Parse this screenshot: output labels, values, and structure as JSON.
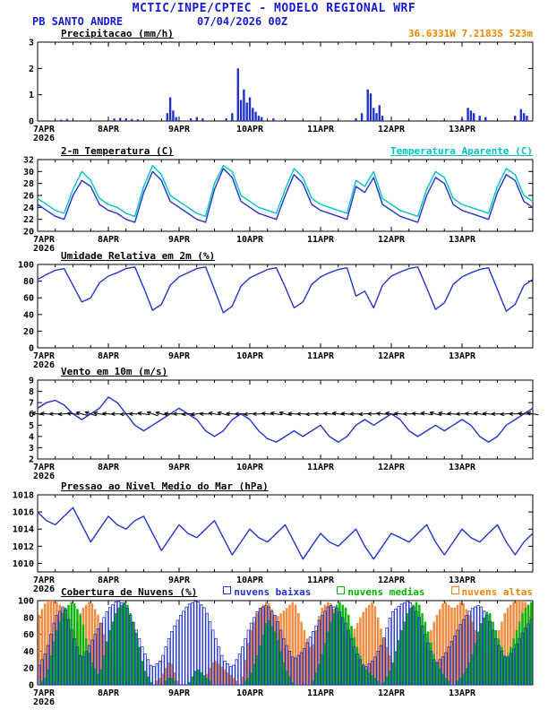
{
  "header": {
    "line1": "MCTIC/INPE/CPTEC - MODELO REGIONAL WRF",
    "station": "PB SANTO ANDRE",
    "run": "07/04/2026 00Z",
    "coords": "36.6331W 7.2183S 523m"
  },
  "colors": {
    "blue": "#1a1ad1",
    "orange": "#ee8500",
    "line_blue": "#2233cc",
    "cyan": "#00c3c3",
    "green": "#00b400",
    "cloud_orange": "#f0883c"
  },
  "time": {
    "hours_total": 168,
    "step_hours": 3,
    "xticks": [
      {
        "h": 0,
        "label": "7APR",
        "sub": "2026"
      },
      {
        "h": 24,
        "label": "8APR"
      },
      {
        "h": 48,
        "label": "9APR"
      },
      {
        "h": 72,
        "label": "10APR"
      },
      {
        "h": 96,
        "label": "11APR"
      },
      {
        "h": 120,
        "label": "12APR"
      },
      {
        "h": 144,
        "label": "13APR"
      }
    ]
  },
  "chart_data": [
    {
      "id": "precip",
      "type": "bar",
      "title": "Precipitacao (mm/h)",
      "ylabel": "mm/h",
      "ylim": [
        0,
        3
      ],
      "yticks": [
        0,
        1,
        2,
        3
      ],
      "bar_color": "#2233cc",
      "bars": [
        [
          8,
          0.05
        ],
        [
          10,
          0.08
        ],
        [
          26,
          0.1
        ],
        [
          28,
          0.12
        ],
        [
          30,
          0.1
        ],
        [
          32,
          0.08
        ],
        [
          34,
          0.06
        ],
        [
          44,
          0.3
        ],
        [
          45,
          0.9
        ],
        [
          46,
          0.4
        ],
        [
          47,
          0.15
        ],
        [
          52,
          0.1
        ],
        [
          54,
          0.15
        ],
        [
          56,
          0.1
        ],
        [
          64,
          0.1
        ],
        [
          66,
          0.3
        ],
        [
          68,
          2.0
        ],
        [
          69,
          0.8
        ],
        [
          70,
          1.2
        ],
        [
          71,
          0.7
        ],
        [
          72,
          0.9
        ],
        [
          73,
          0.5
        ],
        [
          74,
          0.35
        ],
        [
          75,
          0.2
        ],
        [
          76,
          0.15
        ],
        [
          80,
          0.1
        ],
        [
          84,
          0.05
        ],
        [
          108,
          0.1
        ],
        [
          110,
          0.3
        ],
        [
          112,
          1.2
        ],
        [
          113,
          1.05
        ],
        [
          114,
          0.5
        ],
        [
          115,
          0.3
        ],
        [
          116,
          0.6
        ],
        [
          117,
          0.2
        ],
        [
          144,
          0.1
        ],
        [
          146,
          0.5
        ],
        [
          147,
          0.4
        ],
        [
          148,
          0.3
        ],
        [
          150,
          0.2
        ],
        [
          152,
          0.15
        ],
        [
          162,
          0.2
        ],
        [
          164,
          0.45
        ],
        [
          165,
          0.3
        ],
        [
          166,
          0.2
        ]
      ]
    },
    {
      "id": "temp",
      "type": "line",
      "title": "2-m Temperatura (C)",
      "legend_right": "Temperatura Aparente (C)",
      "ylim": [
        20,
        32
      ],
      "yticks": [
        20,
        22,
        24,
        26,
        28,
        30,
        32
      ],
      "series": [
        {
          "name": "2-m Temperatura (C)",
          "color": "#2233cc",
          "values": [
            24.5,
            23.5,
            22.5,
            22,
            26,
            28.5,
            27.5,
            24.5,
            23.5,
            23,
            22,
            21.5,
            26.5,
            30,
            28.5,
            25,
            24,
            23,
            22,
            21.5,
            27,
            30.5,
            29,
            25,
            24,
            23,
            22.5,
            22,
            26,
            29.5,
            28,
            24.5,
            23.5,
            23,
            22.5,
            22,
            27.5,
            26.5,
            29,
            24.5,
            23.5,
            22.5,
            22,
            21.5,
            26,
            29,
            28,
            24.5,
            23.5,
            23,
            22.5,
            22,
            26.5,
            29.5,
            28.5,
            25,
            24
          ]
        },
        {
          "name": "Temperatura Aparente (C)",
          "color": "#00c3c3",
          "values": [
            25.5,
            24.5,
            23.5,
            23,
            27,
            30,
            28.5,
            25.5,
            24.5,
            24,
            23,
            22.5,
            27.5,
            31,
            29.5,
            26,
            25,
            24,
            23,
            22.5,
            28,
            31,
            30,
            26,
            25,
            24,
            23.5,
            23,
            27,
            30.5,
            29,
            25.5,
            24.5,
            24,
            23.5,
            23,
            28.5,
            27.5,
            30,
            25.5,
            24.5,
            23.5,
            23,
            22.5,
            27,
            30,
            29,
            25.5,
            24.5,
            24,
            23.5,
            23,
            27.5,
            30.5,
            29.5,
            26,
            25
          ]
        }
      ]
    },
    {
      "id": "rh",
      "type": "line",
      "title": "Umidade Relativa em 2m (%)",
      "ylim": [
        0,
        100
      ],
      "yticks": [
        0,
        20,
        40,
        60,
        80,
        100
      ],
      "series": [
        {
          "name": "Umidade Relativa em 2m (%)",
          "color": "#2233cc",
          "values": [
            82,
            88,
            93,
            95,
            75,
            55,
            60,
            78,
            86,
            90,
            95,
            97,
            72,
            45,
            52,
            75,
            85,
            90,
            95,
            97,
            70,
            42,
            50,
            74,
            84,
            89,
            94,
            96,
            73,
            48,
            55,
            76,
            85,
            90,
            94,
            96,
            62,
            68,
            48,
            75,
            86,
            91,
            95,
            97,
            72,
            46,
            54,
            76,
            85,
            90,
            94,
            96,
            70,
            44,
            52,
            75,
            82
          ]
        }
      ]
    },
    {
      "id": "wind",
      "type": "line+barbs",
      "title": "Vento em 10m (m/s)",
      "ylim": [
        2,
        9
      ],
      "yticks": [
        2,
        3,
        4,
        5,
        6,
        7,
        8,
        9
      ],
      "series": [
        {
          "name": "Vento em 10m (m/s)",
          "color": "#2233cc",
          "values": [
            6.5,
            7,
            7.2,
            6.8,
            6,
            5.5,
            6,
            6.5,
            7.5,
            7,
            6,
            5,
            4.5,
            5,
            5.5,
            6,
            6.5,
            6,
            5.5,
            4.5,
            4,
            4.5,
            5.5,
            6,
            5.5,
            4.5,
            3.8,
            3.5,
            4,
            4.5,
            4,
            4.5,
            5,
            4,
            3.5,
            4,
            5,
            5.5,
            5,
            5.5,
            6,
            5.5,
            4.5,
            4,
            4.5,
            5,
            4.5,
            5,
            5.5,
            5,
            4,
            3.5,
            4,
            5,
            5.5,
            6,
            6.5
          ]
        }
      ],
      "barbs": {
        "y": 6.0,
        "dirs": [
          190,
          185,
          180,
          175,
          185,
          195,
          200,
          190,
          185,
          180,
          175,
          180,
          190,
          200,
          195,
          185,
          180,
          175,
          170,
          180,
          190,
          195,
          185,
          180,
          175,
          180,
          185,
          190,
          195,
          185,
          180,
          175,
          180,
          185,
          190,
          185,
          180,
          175,
          180,
          185,
          190,
          185,
          180,
          185,
          190,
          195,
          190,
          185,
          180,
          185,
          190,
          185,
          180,
          175,
          180,
          185,
          190
        ]
      }
    },
    {
      "id": "pres",
      "type": "line",
      "title": "Pressao ao Nivel Medio do Mar (hPa)",
      "ylim": [
        1009,
        1018
      ],
      "yticks": [
        1010,
        1012,
        1014,
        1016,
        1018
      ],
      "series": [
        {
          "name": "Pressao ao Nivel Medio do Mar (hPa)",
          "color": "#2233cc",
          "values": [
            1016,
            1015,
            1014.5,
            1015.5,
            1016.5,
            1014.5,
            1012.5,
            1014,
            1015.5,
            1014.5,
            1014,
            1015,
            1015.5,
            1013.5,
            1011.5,
            1013,
            1014.5,
            1013.5,
            1013,
            1014,
            1015,
            1013,
            1011,
            1012.5,
            1014,
            1013,
            1012.5,
            1013.5,
            1014.5,
            1012.5,
            1010.5,
            1012,
            1013.5,
            1012.5,
            1012,
            1013,
            1014,
            1012,
            1010.5,
            1012,
            1013.5,
            1013,
            1012.5,
            1013.5,
            1014.5,
            1012.5,
            1011,
            1012.5,
            1014,
            1013,
            1012.5,
            1013.5,
            1014.5,
            1012.5,
            1011,
            1012.5,
            1013.5
          ]
        }
      ]
    },
    {
      "id": "clouds",
      "type": "bar-multi",
      "title": "Cobertura de Nuvens (%)",
      "ylim": [
        0,
        100
      ],
      "yticks": [
        0,
        20,
        40,
        60,
        80,
        100
      ],
      "legend": [
        {
          "label": "nuvens baixas",
          "color": "#2233cc"
        },
        {
          "label": "nuvens medias",
          "color": "#00b400"
        },
        {
          "label": "nuvens altas",
          "color": "#ee8500"
        }
      ],
      "series": [
        {
          "name": "nuvens altas",
          "color": "#f0883c",
          "fill": true,
          "values": [
            80,
            100,
            100,
            90,
            60,
            90,
            100,
            80,
            40,
            10,
            0,
            0,
            0,
            0,
            10,
            30,
            0,
            0,
            0,
            10,
            30,
            20,
            10,
            0,
            60,
            90,
            100,
            80,
            90,
            100,
            70,
            40,
            90,
            100,
            80,
            50,
            70,
            90,
            100,
            60,
            30,
            10,
            0,
            20,
            50,
            80,
            100,
            90,
            100,
            80,
            50,
            30,
            60,
            90,
            100,
            100,
            90
          ]
        },
        {
          "name": "nuvens medias",
          "color": "#00b400",
          "fill": true,
          "values": [
            0,
            10,
            60,
            90,
            100,
            80,
            30,
            10,
            60,
            90,
            100,
            70,
            20,
            0,
            0,
            10,
            0,
            0,
            20,
            10,
            0,
            0,
            0,
            0,
            10,
            40,
            80,
            60,
            20,
            0,
            0,
            0,
            30,
            70,
            100,
            90,
            50,
            20,
            10,
            0,
            20,
            60,
            90,
            100,
            70,
            30,
            10,
            0,
            10,
            30,
            70,
            90,
            60,
            30,
            60,
            90,
            100
          ]
        },
        {
          "name": "nuvens baixas",
          "color": "#2233cc",
          "fill": false,
          "values": [
            20,
            40,
            80,
            95,
            60,
            30,
            50,
            70,
            90,
            100,
            95,
            70,
            40,
            20,
            30,
            60,
            80,
            95,
            100,
            90,
            60,
            30,
            20,
            40,
            70,
            90,
            95,
            80,
            50,
            30,
            40,
            60,
            80,
            95,
            90,
            70,
            40,
            20,
            30,
            50,
            85,
            95,
            100,
            85,
            55,
            25,
            35,
            55,
            75,
            90,
            95,
            80,
            50,
            30,
            45,
            65,
            80
          ]
        }
      ]
    }
  ]
}
